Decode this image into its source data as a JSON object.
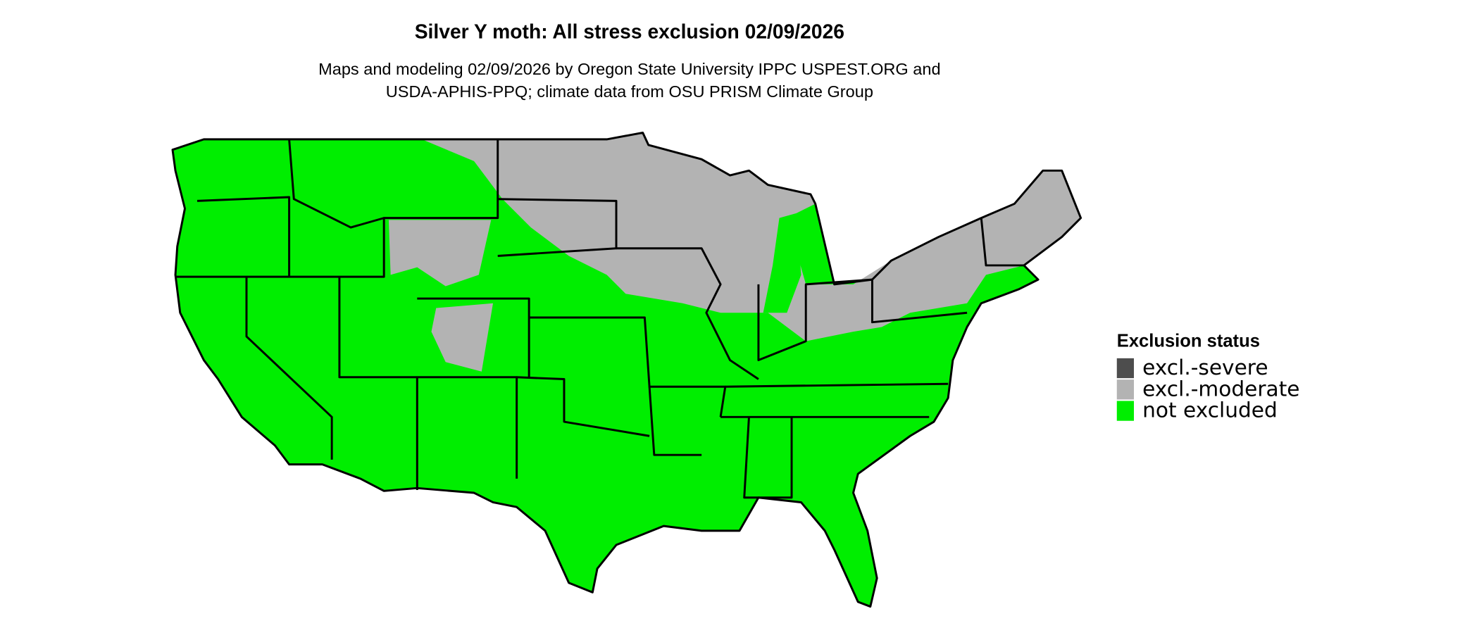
{
  "header": {
    "title": "Silver Y moth: All stress exclusion 02/09/2026",
    "subtitle": [
      "Maps and modeling 02/09/2026 by Oregon State University IPPC USPEST.ORG and",
      "USDA-APHIS-PPQ; climate data from OSU PRISM Climate Group"
    ]
  },
  "legend": {
    "title": "Exclusion status",
    "items": [
      {
        "label": "excl.-severe",
        "color": "#4d4d4d"
      },
      {
        "label": "excl.-moderate",
        "color": "#b3b3b3"
      },
      {
        "label": "not excluded",
        "color": "#00ee00"
      }
    ]
  }
}
